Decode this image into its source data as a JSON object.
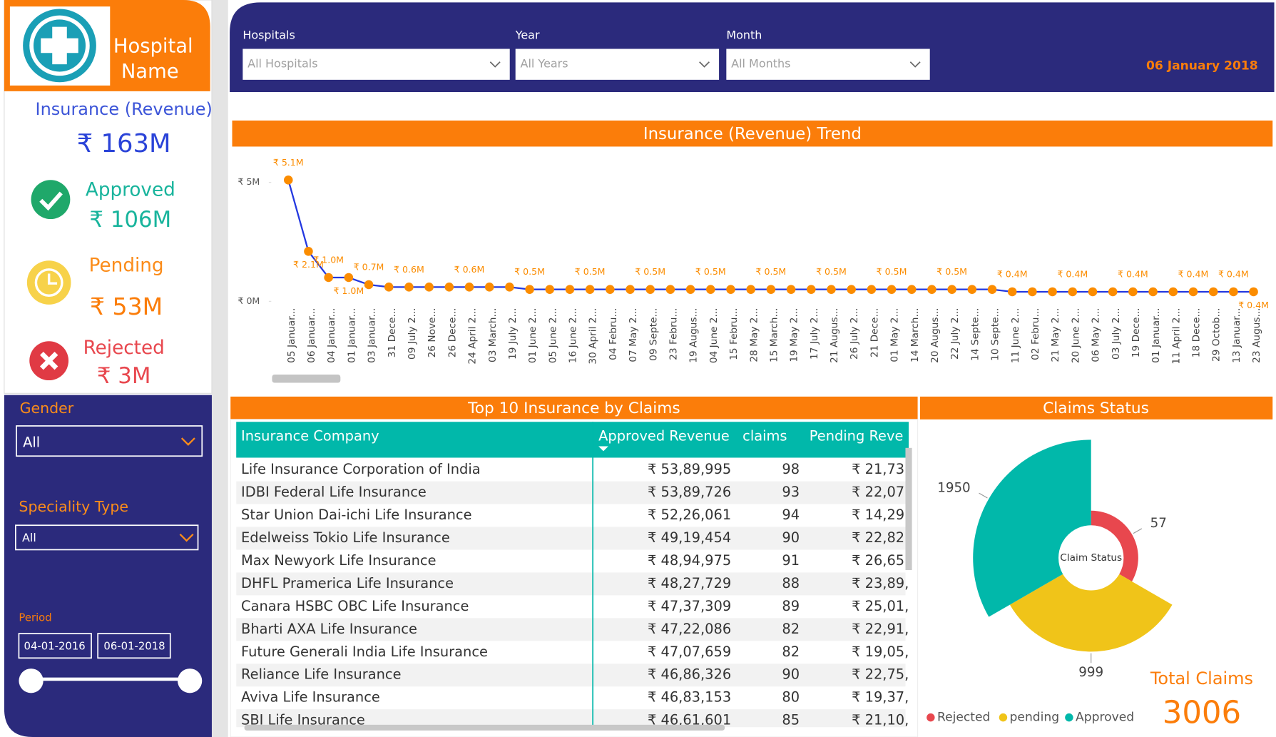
{
  "sidebar": {
    "logo": {
      "line1": "Hospital",
      "line2": "Name"
    },
    "kpis": [
      {
        "label": "Insurance (Revenue)",
        "value": "₹ 163M"
      },
      {
        "label": "Approved",
        "value": "₹ 106M"
      },
      {
        "label": "Pending",
        "value": "₹ 53M"
      },
      {
        "label": "Rejected",
        "value": "₹ 3M"
      }
    ],
    "filters": {
      "gender": {
        "label": "Gender",
        "value": "All"
      },
      "speciality": {
        "label": "Speciality Type",
        "value": "All"
      },
      "period": {
        "label": "Period",
        "start": "04-01-2016",
        "end": "06-01-2018"
      }
    }
  },
  "header": {
    "filters": [
      {
        "label": "Hospitals",
        "value": "All Hospitals"
      },
      {
        "label": "Year",
        "value": "All Years"
      },
      {
        "label": "Month",
        "value": "All Months"
      }
    ],
    "date": "06 January 2018"
  },
  "trend": {
    "type": "line",
    "title": "Insurance (Revenue) Trend",
    "categories": [
      "05 Januar...",
      "06 Januar...",
      "04 Januar...",
      "01 Januar...",
      "03 Januar...",
      "31 Dece...",
      "09 July 2...",
      "26 Nove...",
      "26 Dece...",
      "24 April 2...",
      "03 March...",
      "19 July 2...",
      "01 June 2...",
      "05 June 2...",
      "16 June 2...",
      "30 April 2...",
      "04 Febru...",
      "07 May 2...",
      "09 Septe...",
      "23 Febru...",
      "19 Augus...",
      "04 June 2...",
      "15 Febru...",
      "28 May 2...",
      "15 March...",
      "19 May 2...",
      "17 July 2...",
      "21 Augus...",
      "26 July 2...",
      "21 Dece...",
      "01 May 2...",
      "14 March...",
      "20 Augus...",
      "22 July 2...",
      "14 Septe...",
      "10 Septe...",
      "11 June 2...",
      "02 Febru...",
      "21 May 2...",
      "20 June 2...",
      "06 May 2...",
      "03 July 2...",
      "19 Dece...",
      "01 Januar...",
      "11 April 2...",
      "18 Dece...",
      "29 Octob...",
      "13 Januar...",
      "23 Augus..."
    ],
    "values": [
      5.1,
      2.1,
      1.0,
      1.0,
      0.7,
      0.6,
      0.6,
      0.6,
      0.6,
      0.6,
      0.6,
      0.6,
      0.5,
      0.5,
      0.5,
      0.5,
      0.5,
      0.5,
      0.5,
      0.5,
      0.5,
      0.5,
      0.5,
      0.5,
      0.5,
      0.5,
      0.5,
      0.5,
      0.5,
      0.5,
      0.5,
      0.5,
      0.5,
      0.5,
      0.5,
      0.5,
      0.4,
      0.4,
      0.4,
      0.4,
      0.4,
      0.4,
      0.4,
      0.4,
      0.4,
      0.4,
      0.4,
      0.4,
      0.4
    ],
    "value_labels": [
      "₹ 5.1M",
      "₹ 2.1M",
      "₹ 1.0M",
      "₹ 1.0M",
      "₹ 0.7M",
      null,
      "₹ 0.6M",
      null,
      null,
      "₹ 0.6M",
      null,
      null,
      "₹ 0.5M",
      null,
      null,
      "₹ 0.5M",
      null,
      null,
      "₹ 0.5M",
      null,
      null,
      "₹ 0.5M",
      null,
      null,
      "₹ 0.5M",
      null,
      null,
      "₹ 0.5M",
      null,
      null,
      "₹ 0.5M",
      null,
      null,
      "₹ 0.5M",
      null,
      null,
      "₹ 0.4M",
      null,
      null,
      "₹ 0.4M",
      null,
      null,
      "₹ 0.4M",
      null,
      null,
      "₹ 0.4M",
      null,
      "₹ 0.4M",
      "₹ 0.4M"
    ],
    "ylim": [
      0,
      5.4
    ],
    "yticks": [
      {
        "value": 0,
        "label": "₹ 0M"
      },
      {
        "value": 5,
        "label": "₹ 5M"
      }
    ],
    "line_color": "#2338e0",
    "marker_color": "#fb8c00"
  },
  "table": {
    "title": "Top 10 Insurance by Claims",
    "columns": [
      "Insurance Company",
      "Approved Revenue",
      "claims",
      "Pending Reve"
    ],
    "rows": [
      [
        "Life Insurance Corporation of India",
        "₹ 53,89,995",
        98,
        "₹ 21,73,"
      ],
      [
        "IDBI Federal Life Insurance",
        "₹ 53,89,726",
        93,
        "₹ 22,07,"
      ],
      [
        "Star Union Dai-ichi Life Insurance",
        "₹ 52,26,061",
        94,
        "₹ 14,29,"
      ],
      [
        "Edelweiss Tokio Life Insurance",
        "₹ 49,19,454",
        90,
        "₹ 22,82,"
      ],
      [
        "Max Newyork Life Insurance",
        "₹ 48,94,975",
        91,
        "₹ 26,65,"
      ],
      [
        "DHFL Pramerica Life Insurance",
        "₹ 48,27,729",
        88,
        "₹ 23,89,"
      ],
      [
        "Canara HSBC OBC Life Insurance",
        "₹ 47,37,309",
        89,
        "₹ 25,01,"
      ],
      [
        "Bharti AXA Life Insurance",
        "₹ 47,22,086",
        82,
        "₹ 22,91,"
      ],
      [
        "Future Generali India Life Insurance",
        "₹ 47,07,659",
        82,
        "₹ 19,05,"
      ],
      [
        "Reliance Life Insurance",
        "₹ 46,86,326",
        90,
        "₹ 22,75,"
      ],
      [
        "Aviva Life Insurance",
        "₹ 46,83,153",
        80,
        "₹ 19,37,"
      ],
      [
        "SBI Life Insurance",
        "₹ 46,61,601",
        85,
        "₹ 21,10,"
      ]
    ]
  },
  "claims_status": {
    "type": "rose",
    "title": "Claims Status",
    "center_label": "Claim Status",
    "categories": [
      "Rejected",
      "pending",
      "Approved"
    ],
    "values": [
      57,
      999,
      1950
    ],
    "colors": [
      "#e8474e",
      "#f0c419",
      "#01b8aa"
    ],
    "total_label": "Total Claims",
    "total": 3006
  }
}
